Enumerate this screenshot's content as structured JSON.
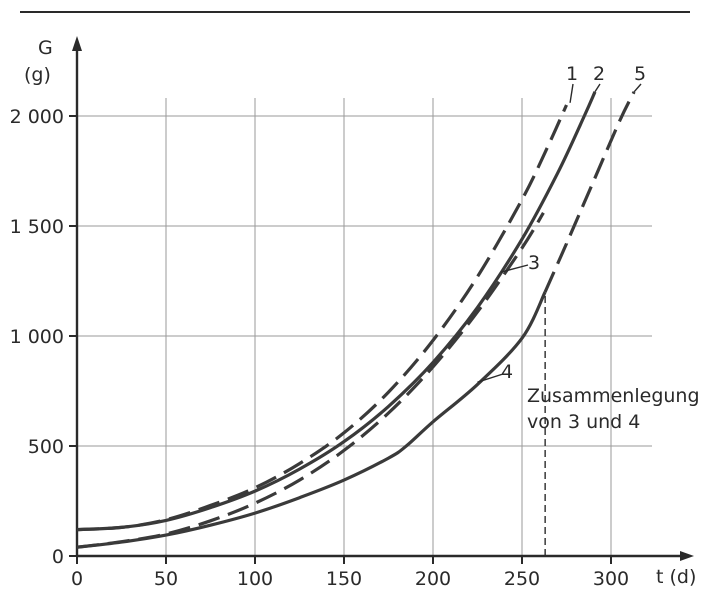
{
  "chart_data": {
    "type": "line",
    "ylabel": "G",
    "yunit": "(g)",
    "xlabel": "t (d)",
    "xlim": [
      0,
      330
    ],
    "ylim": [
      0,
      2100
    ],
    "x_ticks": [
      0,
      50,
      100,
      150,
      200,
      250,
      300
    ],
    "y_ticks": [
      0,
      500,
      1000,
      1500,
      2000
    ],
    "x_tick_labels": [
      "0",
      "50",
      "100",
      "150",
      "200",
      "250",
      "300"
    ],
    "y_tick_labels": [
      "0",
      "500",
      "1 000",
      "1 500",
      "2 000"
    ],
    "grid": true,
    "annotation": {
      "lines": [
        "Zusammenlegung",
        "von 3 und 4"
      ],
      "x": 263
    },
    "series": [
      {
        "name": "1",
        "style": "dashed",
        "points": [
          [
            0,
            120
          ],
          [
            25,
            130
          ],
          [
            50,
            165
          ],
          [
            75,
            230
          ],
          [
            100,
            310
          ],
          [
            125,
            420
          ],
          [
            150,
            560
          ],
          [
            175,
            745
          ],
          [
            200,
            980
          ],
          [
            225,
            1270
          ],
          [
            250,
            1620
          ],
          [
            265,
            1870
          ],
          [
            275,
            2050
          ]
        ]
      },
      {
        "name": "2",
        "style": "solid",
        "points": [
          [
            0,
            120
          ],
          [
            25,
            130
          ],
          [
            50,
            162
          ],
          [
            75,
            220
          ],
          [
            100,
            295
          ],
          [
            125,
            395
          ],
          [
            150,
            520
          ],
          [
            175,
            680
          ],
          [
            200,
            880
          ],
          [
            225,
            1130
          ],
          [
            250,
            1440
          ],
          [
            270,
            1740
          ],
          [
            285,
            2000
          ],
          [
            291,
            2110
          ]
        ]
      },
      {
        "name": "3",
        "style": "dashed",
        "points": [
          [
            0,
            40
          ],
          [
            25,
            65
          ],
          [
            50,
            100
          ],
          [
            75,
            160
          ],
          [
            100,
            240
          ],
          [
            125,
            345
          ],
          [
            150,
            480
          ],
          [
            175,
            650
          ],
          [
            200,
            860
          ],
          [
            225,
            1110
          ],
          [
            250,
            1400
          ],
          [
            262,
            1560
          ]
        ]
      },
      {
        "name": "4",
        "style": "solid",
        "points": [
          [
            0,
            40
          ],
          [
            25,
            63
          ],
          [
            50,
            95
          ],
          [
            75,
            140
          ],
          [
            100,
            195
          ],
          [
            125,
            265
          ],
          [
            150,
            345
          ],
          [
            175,
            445
          ],
          [
            185,
            500
          ],
          [
            200,
            610
          ],
          [
            225,
            780
          ],
          [
            250,
            990
          ],
          [
            263,
            1200
          ]
        ]
      },
      {
        "name": "5",
        "style": "dashed",
        "points": [
          [
            263,
            1200
          ],
          [
            275,
            1420
          ],
          [
            290,
            1700
          ],
          [
            305,
            1980
          ],
          [
            313,
            2110
          ]
        ]
      }
    ]
  }
}
